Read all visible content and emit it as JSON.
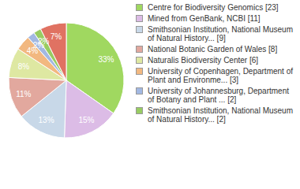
{
  "chart_data": {
    "type": "pie",
    "categories": [
      "Centre for Biodiversity Genomics [23]",
      "Mined from GenBank, NCBI [11]",
      "Smithsonian Institution, National Museum of Natural History... [9]",
      "National Botanic Garden of Wales [8]",
      "Naturalis Biodiversity Center [6]",
      "University of Copenhagen, Department of Plant and Environme... [3]",
      "University of Johannesburg, Department of Botany and Plant ... [2]",
      "Smithsonian Institution, National Museum of Natural History... [2]",
      null
    ],
    "values": [
      33,
      15,
      13,
      11,
      8,
      4,
      2,
      2,
      7
    ],
    "value_labels": [
      "33%",
      "15%",
      "13%",
      "11%",
      "8%",
      "4%",
      "2%",
      "2%",
      "7%"
    ],
    "colors": [
      "#a0d860",
      "#dcbce6",
      "#c8d8e8",
      "#e2a89e",
      "#dee8a2",
      "#f2b880",
      "#a2b8e2",
      "#98cc62",
      "#e07262"
    ],
    "data_labels": true,
    "legend": "right"
  }
}
